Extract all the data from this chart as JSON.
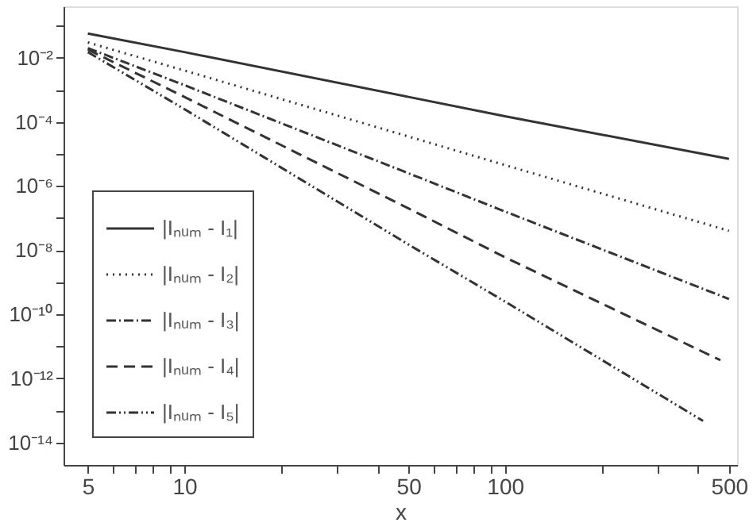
{
  "chart_data": {
    "type": "line",
    "xlabel": "x",
    "log": "xy",
    "grid": false,
    "legend": "bottom left",
    "xlim": [
      4.2,
      530
    ],
    "ylim": [
      2e-15,
      0.4
    ],
    "xticks": [
      5,
      {
        "value": 6,
        "label": null
      },
      {
        "value": 7,
        "label": null
      },
      {
        "value": 8,
        "label": null
      },
      {
        "value": 9,
        "label": null
      },
      10,
      {
        "value": 20,
        "label": null
      },
      {
        "value": 30,
        "label": null
      },
      {
        "value": 40,
        "label": null
      },
      50,
      {
        "value": 60,
        "label": null
      },
      {
        "value": 70,
        "label": null
      },
      {
        "value": 80,
        "label": null
      },
      {
        "value": 90,
        "label": null
      },
      100,
      {
        "value": 200,
        "label": null
      },
      {
        "value": 300,
        "label": null
      },
      {
        "value": 400,
        "label": null
      },
      500
    ],
    "yticks": [
      {
        "value": 1e-14,
        "label": "10⁻¹⁴"
      },
      {
        "value": 1e-13,
        "label": null
      },
      {
        "value": 1e-12,
        "label": "10⁻¹²"
      },
      {
        "value": 1e-11,
        "label": null
      },
      {
        "value": 1e-10,
        "label": "10⁻¹⁰"
      },
      {
        "value": 1e-09,
        "label": null
      },
      {
        "value": 1e-08,
        "label": "10⁻⁸"
      },
      {
        "value": 1e-07,
        "label": null
      },
      {
        "value": 1e-06,
        "label": "10⁻⁶"
      },
      {
        "value": 1e-05,
        "label": null
      },
      {
        "value": 0.0001,
        "label": "10⁻⁴"
      },
      {
        "value": 0.001,
        "label": null
      },
      {
        "value": 0.01,
        "label": "10⁻²"
      },
      {
        "value": 0.1,
        "label": null
      }
    ],
    "series": [
      {
        "name": "|Iₙᵤₘ - I₁|",
        "color": "#333333",
        "line_style": "solid",
        "x": [
          5,
          10,
          50,
          100,
          500
        ],
        "values": [
          0.057,
          0.015,
          0.0006,
          0.00015,
          7e-06
        ]
      },
      {
        "name": "|Iₙᵤₘ - I₂|",
        "color": "#333333",
        "line_style": "dotted",
        "x": [
          5,
          10,
          50,
          100,
          500
        ],
        "values": [
          0.03,
          0.004,
          3.5e-05,
          4.5e-06,
          4e-08
        ]
      },
      {
        "name": "|Iₙᵤₘ - I₃|",
        "color": "#333333",
        "line_style": "dashdot",
        "x": [
          5,
          10,
          50,
          100,
          500
        ],
        "values": [
          0.02,
          0.0014,
          2.5e-06,
          1.6e-07,
          3e-10
        ]
      },
      {
        "name": "|Iₙᵤₘ - I₄|",
        "color": "#333333",
        "line_style": "dashed",
        "x": [
          5,
          10,
          50,
          100,
          470
        ],
        "values": [
          0.018,
          0.0006,
          2e-07,
          6e-09,
          3.7e-12
        ]
      },
      {
        "name": "|Iₙᵤₘ - I₅|",
        "color": "#333333",
        "line_style": "dashdotdot",
        "x": [
          5,
          10,
          50,
          100,
          415
        ],
        "values": [
          0.015,
          0.00025,
          1.5e-08,
          2.5e-10,
          4.7e-14
        ]
      }
    ]
  }
}
